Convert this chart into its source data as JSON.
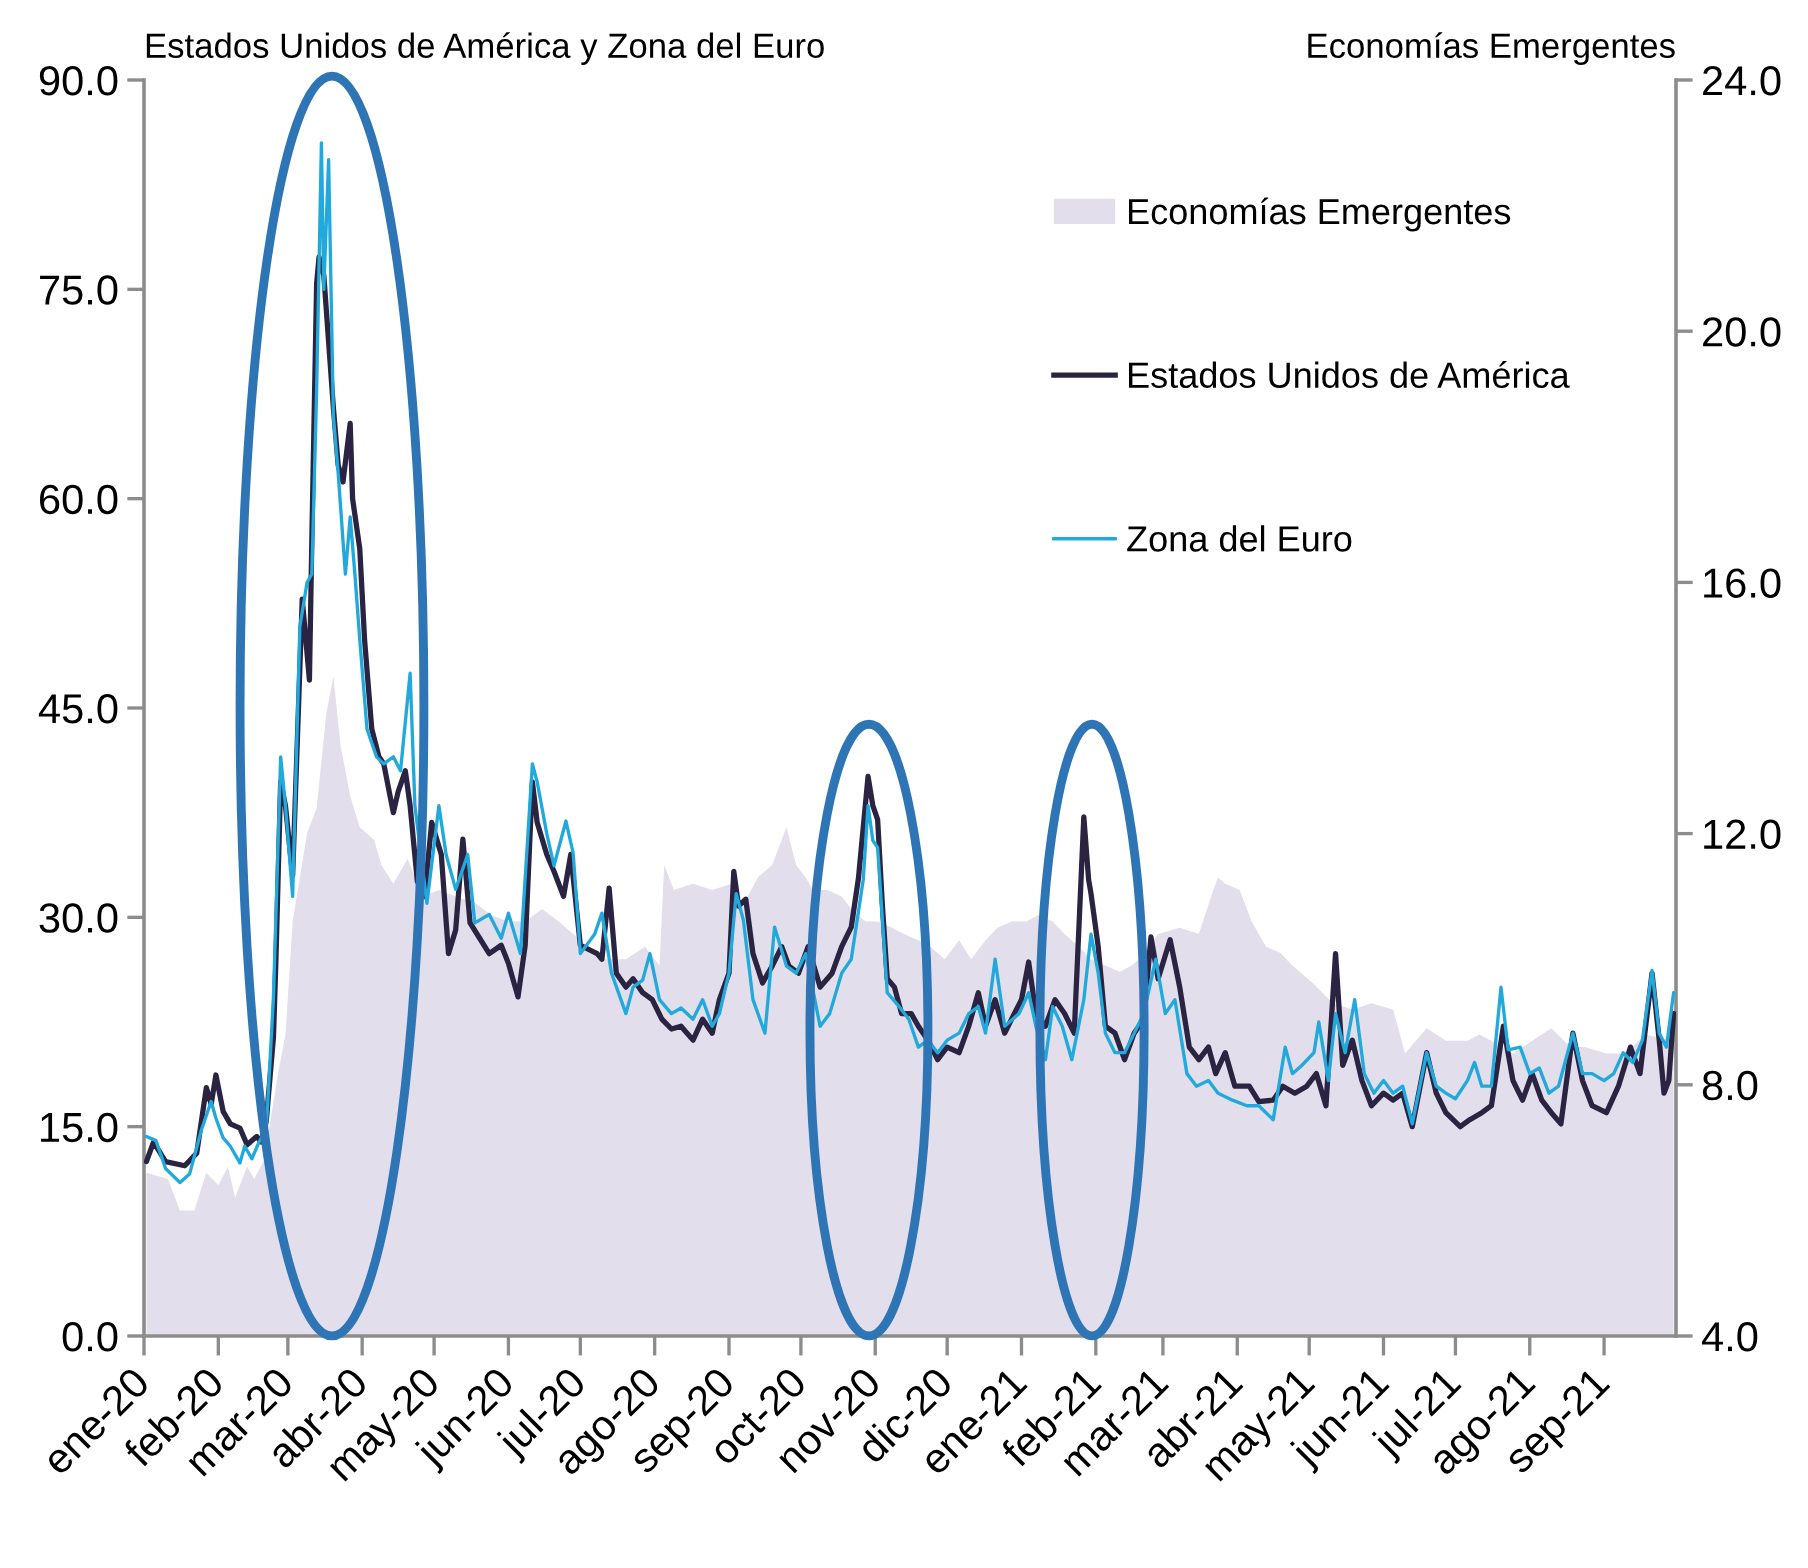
{
  "chart_data": {
    "type": "line",
    "ylabel": "Estados Unidos de América y Zona del Euro",
    "y2label": "Economías Emergentes",
    "xlim": [
      "2020-01-01",
      "2021-10-01"
    ],
    "xticks": [
      {
        "value": "2020-01-01",
        "label": "ene-20"
      },
      {
        "value": "2020-02-01",
        "label": "feb-20"
      },
      {
        "value": "2020-03-01",
        "label": "mar-20"
      },
      {
        "value": "2020-04-01",
        "label": "abr-20"
      },
      {
        "value": "2020-05-01",
        "label": "may-20"
      },
      {
        "value": "2020-06-01",
        "label": "jun-20"
      },
      {
        "value": "2020-07-01",
        "label": "jul-20"
      },
      {
        "value": "2020-08-01",
        "label": "ago-20"
      },
      {
        "value": "2020-09-01",
        "label": "sep-20"
      },
      {
        "value": "2020-10-01",
        "label": "oct-20"
      },
      {
        "value": "2020-11-01",
        "label": "nov-20"
      },
      {
        "value": "2020-12-01",
        "label": "dic-20"
      },
      {
        "value": "2021-01-01",
        "label": "ene-21"
      },
      {
        "value": "2021-02-01",
        "label": "feb-21"
      },
      {
        "value": "2021-03-01",
        "label": "mar-21"
      },
      {
        "value": "2021-04-01",
        "label": "abr-21"
      },
      {
        "value": "2021-05-01",
        "label": "may-21"
      },
      {
        "value": "2021-06-01",
        "label": "jun-21"
      },
      {
        "value": "2021-07-01",
        "label": "jul-21"
      },
      {
        "value": "2021-08-01",
        "label": "ago-21"
      },
      {
        "value": "2021-09-01",
        "label": "sep-21"
      }
    ],
    "ylim": [
      0,
      90
    ],
    "yticks": [
      {
        "value": 0,
        "label": "0.0"
      },
      {
        "value": 15,
        "label": "15.0"
      },
      {
        "value": 30,
        "label": "30.0"
      },
      {
        "value": 45,
        "label": "45.0"
      },
      {
        "value": 60,
        "label": "60.0"
      },
      {
        "value": 75,
        "label": "75.0"
      },
      {
        "value": 90,
        "label": "90.0"
      }
    ],
    "y2lim": [
      4,
      24
    ],
    "y2ticks": [
      {
        "value": 4,
        "label": "4.0"
      },
      {
        "value": 8,
        "label": "8.0"
      },
      {
        "value": 12,
        "label": "12.0"
      },
      {
        "value": 16,
        "label": "16.0"
      },
      {
        "value": 20,
        "label": "20.0"
      },
      {
        "value": 24,
        "label": "24.0"
      }
    ],
    "legend": "top right",
    "series": [
      {
        "name": "Economías Emergentes",
        "type": "area",
        "axis": "y2",
        "color": "#e3deeb",
        "x": [
          "2020-01-02",
          "2020-01-11",
          "2020-01-16",
          "2020-01-22",
          "2020-01-27",
          "2020-02-01",
          "2020-02-05",
          "2020-02-08",
          "2020-02-13",
          "2020-02-16",
          "2020-02-20",
          "2020-02-26",
          "2020-02-29",
          "2020-03-03",
          "2020-03-09",
          "2020-03-13",
          "2020-03-17",
          "2020-03-20",
          "2020-03-23",
          "2020-03-27",
          "2020-03-31",
          "2020-04-06",
          "2020-04-09",
          "2020-04-14",
          "2020-04-20",
          "2020-04-26",
          "2020-05-03",
          "2020-05-10",
          "2020-05-18",
          "2020-05-25",
          "2020-06-01",
          "2020-06-08",
          "2020-06-15",
          "2020-06-22",
          "2020-07-01",
          "2020-07-10",
          "2020-07-20",
          "2020-07-28",
          "2020-08-03",
          "2020-08-05",
          "2020-08-09",
          "2020-08-17",
          "2020-08-25",
          "2020-09-02",
          "2020-09-06",
          "2020-09-13",
          "2020-09-19",
          "2020-09-25",
          "2020-09-29",
          "2020-10-03",
          "2020-10-06",
          "2020-10-12",
          "2020-10-18",
          "2020-10-22",
          "2020-10-28",
          "2020-11-02",
          "2020-11-08",
          "2020-11-13",
          "2020-11-19",
          "2020-11-24",
          "2020-11-30",
          "2020-12-06",
          "2020-12-11",
          "2020-12-17",
          "2020-12-22",
          "2020-12-28",
          "2021-01-03",
          "2021-01-08",
          "2021-01-14",
          "2021-01-19",
          "2021-01-25",
          "2021-01-30",
          "2021-02-05",
          "2021-02-11",
          "2021-02-16",
          "2021-02-19",
          "2021-02-27",
          "2021-03-08",
          "2021-03-16",
          "2021-03-22",
          "2021-03-24",
          "2021-03-27",
          "2021-04-02",
          "2021-04-07",
          "2021-04-13",
          "2021-04-19",
          "2021-04-24",
          "2021-05-03",
          "2021-05-11",
          "2021-05-19",
          "2021-05-27",
          "2021-06-05",
          "2021-06-10",
          "2021-06-19",
          "2021-06-27",
          "2021-07-06",
          "2021-07-11",
          "2021-07-16",
          "2021-07-25",
          "2021-08-02",
          "2021-08-10",
          "2021-08-18",
          "2021-08-24",
          "2021-09-02",
          "2021-09-10",
          "2021-09-18",
          "2021-09-30"
        ],
        "values": [
          6.6,
          6.5,
          6.0,
          6.0,
          6.6,
          6.4,
          6.7,
          6.2,
          6.7,
          6.5,
          6.8,
          8.2,
          8.8,
          10.6,
          12.0,
          12.4,
          13.9,
          14.5,
          13.4,
          12.6,
          12.1,
          11.9,
          11.5,
          11.2,
          11.6,
          11.0,
          11.1,
          11.0,
          10.9,
          10.7,
          10.6,
          10.6,
          10.8,
          10.6,
          10.3,
          10.0,
          10.0,
          10.2,
          9.9,
          11.5,
          11.1,
          11.2,
          11.1,
          11.2,
          10.8,
          11.3,
          11.5,
          12.1,
          11.5,
          11.3,
          11.1,
          11.1,
          11.0,
          10.8,
          10.6,
          10.6,
          10.5,
          10.4,
          10.3,
          10.2,
          10.0,
          10.3,
          10.0,
          10.3,
          10.5,
          10.6,
          10.6,
          10.7,
          10.6,
          10.4,
          10.2,
          10.0,
          9.9,
          9.8,
          9.9,
          10.0,
          10.4,
          10.5,
          10.4,
          11.1,
          11.3,
          11.2,
          11.1,
          10.6,
          10.2,
          10.1,
          9.9,
          9.6,
          9.3,
          9.2,
          9.3,
          9.2,
          8.5,
          8.9,
          8.7,
          8.7,
          8.8,
          8.7,
          8.5,
          8.7,
          8.9,
          8.6,
          8.6,
          8.5,
          8.5,
          8.8,
          8.7
        ]
      },
      {
        "name": "Estados Unidos de América",
        "color": "#2b2342",
        "x": [
          "2020-01-02",
          "2020-01-05",
          "2020-01-10",
          "2020-01-18",
          "2020-01-23",
          "2020-01-27",
          "2020-01-29",
          "2020-01-31",
          "2020-02-03",
          "2020-02-06",
          "2020-02-10",
          "2020-02-13",
          "2020-02-17",
          "2020-02-19",
          "2020-02-21",
          "2020-02-24",
          "2020-02-25",
          "2020-02-27",
          "2020-02-29",
          "2020-03-03",
          "2020-03-07",
          "2020-03-10",
          "2020-03-11",
          "2020-03-13",
          "2020-03-14",
          "2020-03-16",
          "2020-03-20",
          "2020-03-22",
          "2020-03-24",
          "2020-03-27",
          "2020-03-28",
          "2020-03-31",
          "2020-04-02",
          "2020-04-05",
          "2020-04-08",
          "2020-04-10",
          "2020-04-14",
          "2020-04-16",
          "2020-04-19",
          "2020-04-21",
          "2020-04-24",
          "2020-04-27",
          "2020-04-30",
          "2020-05-04",
          "2020-05-07",
          "2020-05-10",
          "2020-05-13",
          "2020-05-16",
          "2020-05-20",
          "2020-05-24",
          "2020-05-29",
          "2020-06-01",
          "2020-06-05",
          "2020-06-08",
          "2020-06-11",
          "2020-06-13",
          "2020-06-17",
          "2020-06-20",
          "2020-06-24",
          "2020-06-27",
          "2020-07-01",
          "2020-07-08",
          "2020-07-10",
          "2020-07-13",
          "2020-07-16",
          "2020-07-20",
          "2020-07-23",
          "2020-07-27",
          "2020-07-31",
          "2020-08-04",
          "2020-08-08",
          "2020-08-12",
          "2020-08-17",
          "2020-08-21",
          "2020-08-25",
          "2020-08-28",
          "2020-09-01",
          "2020-09-03",
          "2020-09-05",
          "2020-09-08",
          "2020-09-11",
          "2020-09-15",
          "2020-09-19",
          "2020-09-23",
          "2020-09-26",
          "2020-09-30",
          "2020-10-04",
          "2020-10-09",
          "2020-10-14",
          "2020-10-18",
          "2020-10-22",
          "2020-10-25",
          "2020-10-29",
          "2020-10-31",
          "2020-11-02",
          "2020-11-04",
          "2020-11-06",
          "2020-11-09",
          "2020-11-12",
          "2020-11-16",
          "2020-11-19",
          "2020-11-23",
          "2020-11-27",
          "2020-12-01",
          "2020-12-06",
          "2020-12-10",
          "2020-12-14",
          "2020-12-17",
          "2020-12-21",
          "2020-12-25",
          "2020-12-29",
          "2021-01-01",
          "2021-01-04",
          "2021-01-07",
          "2021-01-11",
          "2021-01-15",
          "2021-01-19",
          "2021-01-23",
          "2021-01-27",
          "2021-01-29",
          "2021-01-30",
          "2021-02-02",
          "2021-02-05",
          "2021-02-09",
          "2021-02-13",
          "2021-02-17",
          "2021-02-21",
          "2021-02-24",
          "2021-02-27",
          "2021-03-04",
          "2021-03-08",
          "2021-03-12",
          "2021-03-16",
          "2021-03-20",
          "2021-03-23",
          "2021-03-27",
          "2021-03-31",
          "2021-04-06",
          "2021-04-10",
          "2021-04-16",
          "2021-04-20",
          "2021-04-25",
          "2021-04-30",
          "2021-05-04",
          "2021-05-08",
          "2021-05-12",
          "2021-05-15",
          "2021-05-19",
          "2021-05-23",
          "2021-05-27",
          "2021-06-01",
          "2021-06-05",
          "2021-06-09",
          "2021-06-13",
          "2021-06-19",
          "2021-06-23",
          "2021-06-27",
          "2021-07-03",
          "2021-07-07",
          "2021-07-12",
          "2021-07-16",
          "2021-07-21",
          "2021-07-25",
          "2021-07-29",
          "2021-08-02",
          "2021-08-06",
          "2021-08-10",
          "2021-08-14",
          "2021-08-19",
          "2021-08-23",
          "2021-08-27",
          "2021-09-02",
          "2021-09-07",
          "2021-09-12",
          "2021-09-16",
          "2021-09-21",
          "2021-09-24",
          "2021-09-26",
          "2021-09-28",
          "2021-09-30"
        ],
        "values": [
          12.5,
          13.9,
          12.5,
          12.2,
          13.1,
          17.8,
          16.6,
          18.7,
          16.1,
          15.2,
          14.9,
          13.7,
          14.3,
          13.9,
          15.4,
          21.4,
          26.8,
          39.7,
          38.0,
          33.0,
          52.8,
          47.0,
          57.0,
          75.4,
          77.3,
          76.0,
          66.5,
          62.4,
          61.2,
          65.4,
          60.0,
          56.4,
          49.9,
          43.5,
          41.5,
          41.0,
          37.5,
          39.0,
          40.5,
          38.0,
          32.6,
          31.5,
          36.8,
          34.5,
          27.4,
          29.1,
          35.6,
          29.6,
          28.5,
          27.4,
          28.0,
          26.7,
          24.3,
          28.0,
          39.7,
          36.8,
          34.5,
          33.3,
          31.5,
          34.5,
          28.0,
          27.4,
          27.0,
          32.1,
          26.0,
          25.0,
          25.6,
          24.6,
          24.1,
          22.7,
          22.0,
          22.2,
          21.2,
          22.7,
          21.7,
          24.1,
          26.0,
          33.3,
          30.8,
          31.3,
          27.4,
          25.3,
          26.5,
          27.9,
          26.5,
          26.0,
          27.9,
          25.0,
          26.0,
          27.9,
          29.3,
          32.8,
          40.1,
          38.0,
          37.0,
          30.8,
          25.6,
          25.0,
          23.1,
          23.1,
          22.2,
          21.2,
          19.8,
          20.7,
          20.3,
          22.2,
          24.6,
          22.2,
          24.1,
          21.7,
          23.1,
          24.1,
          26.8,
          23.1,
          22.2,
          24.1,
          23.1,
          21.7,
          37.2,
          32.7,
          31.7,
          27.9,
          22.2,
          21.7,
          19.8,
          21.7,
          22.7,
          28.6,
          25.6,
          28.4,
          25.0,
          20.7,
          19.8,
          20.7,
          18.8,
          20.3,
          17.9,
          17.9,
          16.8,
          16.9,
          17.9,
          17.4,
          17.9,
          18.8,
          16.5,
          27.4,
          19.4,
          21.2,
          18.3,
          16.5,
          17.4,
          16.9,
          17.4,
          15.0,
          20.3,
          17.4,
          16.0,
          15.0,
          15.5,
          16.0,
          16.5,
          22.2,
          18.3,
          16.9,
          18.8,
          16.9,
          16.0,
          15.2,
          21.7,
          18.3,
          16.5,
          16.0,
          17.9,
          20.7,
          18.8,
          26.0,
          21.2,
          17.4,
          18.3,
          23.1
        ]
      },
      {
        "name": "Zona del Euro",
        "color": "#22a9dc",
        "x": [
          "2020-01-02",
          "2020-01-06",
          "2020-01-10",
          "2020-01-16",
          "2020-01-20",
          "2020-01-25",
          "2020-01-29",
          "2020-01-31",
          "2020-02-03",
          "2020-02-06",
          "2020-02-10",
          "2020-02-12",
          "2020-02-15",
          "2020-02-18",
          "2020-02-21",
          "2020-02-24",
          "2020-02-25",
          "2020-02-27",
          "2020-02-29",
          "2020-03-03",
          "2020-03-06",
          "2020-03-09",
          "2020-03-11",
          "2020-03-13",
          "2020-03-15",
          "2020-03-16",
          "2020-03-18",
          "2020-03-20",
          "2020-03-22",
          "2020-03-25",
          "2020-03-27",
          "2020-03-29",
          "2020-03-31",
          "2020-04-03",
          "2020-04-07",
          "2020-04-10",
          "2020-04-14",
          "2020-04-17",
          "2020-04-21",
          "2020-04-23",
          "2020-04-28",
          "2020-05-03",
          "2020-05-06",
          "2020-05-10",
          "2020-05-15",
          "2020-05-18",
          "2020-05-24",
          "2020-05-29",
          "2020-06-01",
          "2020-06-06",
          "2020-06-11",
          "2020-06-13",
          "2020-06-17",
          "2020-06-20",
          "2020-06-25",
          "2020-06-28",
          "2020-07-01",
          "2020-07-07",
          "2020-07-10",
          "2020-07-14",
          "2020-07-20",
          "2020-07-23",
          "2020-07-27",
          "2020-07-30",
          "2020-08-03",
          "2020-08-08",
          "2020-08-12",
          "2020-08-17",
          "2020-08-21",
          "2020-08-25",
          "2020-08-28",
          "2020-09-01",
          "2020-09-04",
          "2020-09-07",
          "2020-09-11",
          "2020-09-16",
          "2020-09-20",
          "2020-09-25",
          "2020-09-29",
          "2020-10-03",
          "2020-10-09",
          "2020-10-13",
          "2020-10-18",
          "2020-10-22",
          "2020-10-27",
          "2020-10-29",
          "2020-10-31",
          "2020-11-02",
          "2020-11-04",
          "2020-11-06",
          "2020-11-11",
          "2020-11-15",
          "2020-11-19",
          "2020-11-23",
          "2020-11-27",
          "2020-12-01",
          "2020-12-06",
          "2020-12-10",
          "2020-12-14",
          "2020-12-17",
          "2020-12-21",
          "2020-12-25",
          "2020-12-31",
          "2021-01-04",
          "2021-01-07",
          "2021-01-11",
          "2021-01-14",
          "2021-01-18",
          "2021-01-22",
          "2021-01-27",
          "2021-01-30",
          "2021-02-02",
          "2021-02-05",
          "2021-02-09",
          "2021-02-13",
          "2021-02-17",
          "2021-02-21",
          "2021-02-26",
          "2021-03-02",
          "2021-03-06",
          "2021-03-11",
          "2021-03-15",
          "2021-03-20",
          "2021-03-24",
          "2021-03-30",
          "2021-04-05",
          "2021-04-10",
          "2021-04-16",
          "2021-04-21",
          "2021-04-24",
          "2021-04-28",
          "2021-05-03",
          "2021-05-05",
          "2021-05-09",
          "2021-05-12",
          "2021-05-16",
          "2021-05-20",
          "2021-05-24",
          "2021-05-28",
          "2021-06-01",
          "2021-06-05",
          "2021-06-09",
          "2021-06-13",
          "2021-06-19",
          "2021-06-23",
          "2021-06-27",
          "2021-07-01",
          "2021-07-06",
          "2021-07-09",
          "2021-07-12",
          "2021-07-16",
          "2021-07-20",
          "2021-07-23",
          "2021-07-28",
          "2021-08-01",
          "2021-08-05",
          "2021-08-09",
          "2021-08-13",
          "2021-08-19",
          "2021-08-23",
          "2021-08-27",
          "2021-09-01",
          "2021-09-05",
          "2021-09-09",
          "2021-09-13",
          "2021-09-17",
          "2021-09-21",
          "2021-09-24",
          "2021-09-27",
          "2021-09-30"
        ],
        "values": [
          14.3,
          14.0,
          12.0,
          11.0,
          11.6,
          14.8,
          16.8,
          15.6,
          14.2,
          13.6,
          12.4,
          13.6,
          12.7,
          13.9,
          14.8,
          24.3,
          30.0,
          41.5,
          38.0,
          31.5,
          50.8,
          54.0,
          54.6,
          67.7,
          85.5,
          75.0,
          84.3,
          65.9,
          61.8,
          54.6,
          58.7,
          54.5,
          49.9,
          43.5,
          41.5,
          41.0,
          41.5,
          40.5,
          47.5,
          38.0,
          31.0,
          38.0,
          34.5,
          32.0,
          34.5,
          29.6,
          30.2,
          28.5,
          30.3,
          27.4,
          41.0,
          39.7,
          36.0,
          33.7,
          36.9,
          34.6,
          27.4,
          28.8,
          30.3,
          26.0,
          23.1,
          25.0,
          25.5,
          27.4,
          24.1,
          23.1,
          23.5,
          22.7,
          24.1,
          22.2,
          23.1,
          26.0,
          31.7,
          29.8,
          24.1,
          21.7,
          29.3,
          26.5,
          26.0,
          27.4,
          22.2,
          23.1,
          26.0,
          27.0,
          32.7,
          38.0,
          35.5,
          35.0,
          29.8,
          24.6,
          23.6,
          22.7,
          20.7,
          21.2,
          20.3,
          21.2,
          21.7,
          23.1,
          23.6,
          21.7,
          27.0,
          22.2,
          23.1,
          24.6,
          22.2,
          19.8,
          23.6,
          22.2,
          19.8,
          24.1,
          28.8,
          26.0,
          21.7,
          20.3,
          20.3,
          21.7,
          23.1,
          27.0,
          23.1,
          24.1,
          18.8,
          17.9,
          18.3,
          17.4,
          16.9,
          16.5,
          16.5,
          15.5,
          20.7,
          18.8,
          19.4,
          20.3,
          22.5,
          18.3,
          23.1,
          20.3,
          24.1,
          18.8,
          17.4,
          18.3,
          17.4,
          17.9,
          15.2,
          20.3,
          17.9,
          17.4,
          17.0,
          18.3,
          19.6,
          17.9,
          17.9,
          25.0,
          20.5,
          20.7,
          18.8,
          19.2,
          17.4,
          17.9,
          21.7,
          18.8,
          18.8,
          18.3,
          18.8,
          20.3,
          19.6,
          21.2,
          26.2,
          21.7,
          20.7,
          24.6
        ]
      }
    ]
  }
}
